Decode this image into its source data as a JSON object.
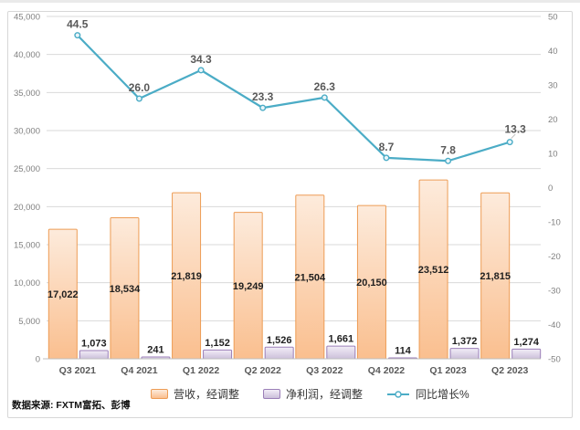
{
  "source_note": "数据来源: FXTM富拓、彭博",
  "chart_data": {
    "type": "combo",
    "title": "",
    "categories": [
      "Q3 2021",
      "Q4 2021",
      "Q1 2022",
      "Q2 2022",
      "Q3 2022",
      "Q4 2022",
      "Q1 2023",
      "Q2 2023"
    ],
    "series": [
      {
        "name": "营收，经调整",
        "type": "bar",
        "axis": "left",
        "values": [
          17022,
          18534,
          21819,
          19249,
          21504,
          20150,
          23512,
          21815
        ],
        "color": "#FABF8F",
        "color_light": "#FDEBDC",
        "border": "#ED9C55"
      },
      {
        "name": "净利润，经调整",
        "type": "bar",
        "axis": "left",
        "values": [
          1073,
          241,
          1152,
          1526,
          1661,
          114,
          1372,
          1274
        ],
        "color": "#CCC0DA",
        "color_light": "#F2EDF7",
        "border": "#9B7FB8"
      },
      {
        "name": "同比增长%",
        "type": "line",
        "axis": "right",
        "values": [
          44.5,
          26.0,
          34.3,
          23.3,
          26.3,
          8.7,
          7.8,
          13.3
        ],
        "color": "#4BACC6"
      }
    ],
    "left_axis": {
      "min": 0,
      "max": 45000,
      "step": 5000
    },
    "right_axis": {
      "min": -50,
      "max": 50,
      "step": 10
    },
    "grid": true,
    "legend_position": "bottom",
    "gridline_color": "#D9D9D9",
    "axis_line_color": "#BFBFBF"
  }
}
